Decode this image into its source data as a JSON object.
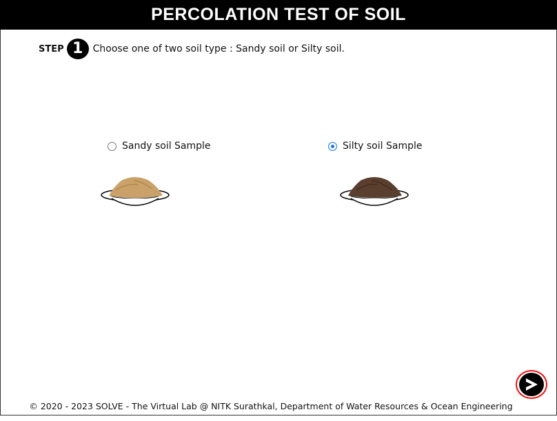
{
  "header": {
    "title": "PERCOLATION TEST OF SOIL"
  },
  "step": {
    "label": "STEP",
    "number": "1",
    "instruction": "Choose one of two soil type : Sandy soil or Silty soil."
  },
  "options": [
    {
      "label": "Sandy soil Sample",
      "selected": false,
      "color": "#c9a169"
    },
    {
      "label": "Silty soil Sample",
      "selected": true,
      "color": "#5a3e2e"
    }
  ],
  "footer": {
    "text": "© 2020 - 2023 SOLVE - The Virtual Lab @ NITK Surathkal, Department of Water Resources & Ocean Engineering"
  },
  "colors": {
    "radio_selected": "#1a73e8",
    "next_ring": "#e11111"
  },
  "icons": {
    "next": "next-arrow-icon"
  }
}
